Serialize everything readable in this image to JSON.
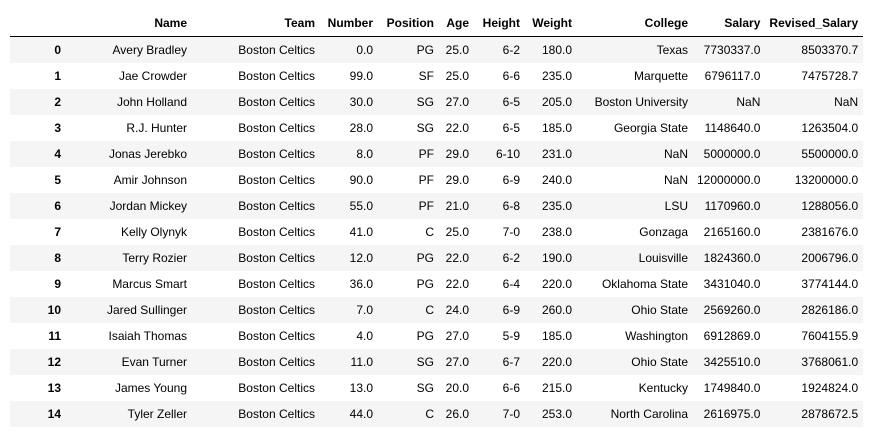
{
  "columns": [
    "",
    "Name",
    "Team",
    "Number",
    "Position",
    "Age",
    "Height",
    "Weight",
    "College",
    "Salary",
    "Revised_Salary"
  ],
  "rows": [
    [
      "0",
      "Avery Bradley",
      "Boston Celtics",
      "0.0",
      "PG",
      "25.0",
      "6-2",
      "180.0",
      "Texas",
      "7730337.0",
      "8503370.7"
    ],
    [
      "1",
      "Jae Crowder",
      "Boston Celtics",
      "99.0",
      "SF",
      "25.0",
      "6-6",
      "235.0",
      "Marquette",
      "6796117.0",
      "7475728.7"
    ],
    [
      "2",
      "John Holland",
      "Boston Celtics",
      "30.0",
      "SG",
      "27.0",
      "6-5",
      "205.0",
      "Boston University",
      "NaN",
      "NaN"
    ],
    [
      "3",
      "R.J. Hunter",
      "Boston Celtics",
      "28.0",
      "SG",
      "22.0",
      "6-5",
      "185.0",
      "Georgia State",
      "1148640.0",
      "1263504.0"
    ],
    [
      "4",
      "Jonas Jerebko",
      "Boston Celtics",
      "8.0",
      "PF",
      "29.0",
      "6-10",
      "231.0",
      "NaN",
      "5000000.0",
      "5500000.0"
    ],
    [
      "5",
      "Amir Johnson",
      "Boston Celtics",
      "90.0",
      "PF",
      "29.0",
      "6-9",
      "240.0",
      "NaN",
      "12000000.0",
      "13200000.0"
    ],
    [
      "6",
      "Jordan Mickey",
      "Boston Celtics",
      "55.0",
      "PF",
      "21.0",
      "6-8",
      "235.0",
      "LSU",
      "1170960.0",
      "1288056.0"
    ],
    [
      "7",
      "Kelly Olynyk",
      "Boston Celtics",
      "41.0",
      "C",
      "25.0",
      "7-0",
      "238.0",
      "Gonzaga",
      "2165160.0",
      "2381676.0"
    ],
    [
      "8",
      "Terry Rozier",
      "Boston Celtics",
      "12.0",
      "PG",
      "22.0",
      "6-2",
      "190.0",
      "Louisville",
      "1824360.0",
      "2006796.0"
    ],
    [
      "9",
      "Marcus Smart",
      "Boston Celtics",
      "36.0",
      "PG",
      "22.0",
      "6-4",
      "220.0",
      "Oklahoma State",
      "3431040.0",
      "3774144.0"
    ],
    [
      "10",
      "Jared Sullinger",
      "Boston Celtics",
      "7.0",
      "C",
      "24.0",
      "6-9",
      "260.0",
      "Ohio State",
      "2569260.0",
      "2826186.0"
    ],
    [
      "11",
      "Isaiah Thomas",
      "Boston Celtics",
      "4.0",
      "PG",
      "27.0",
      "5-9",
      "185.0",
      "Washington",
      "6912869.0",
      "7604155.9"
    ],
    [
      "12",
      "Evan Turner",
      "Boston Celtics",
      "11.0",
      "SG",
      "27.0",
      "6-7",
      "220.0",
      "Ohio State",
      "3425510.0",
      "3768061.0"
    ],
    [
      "13",
      "James Young",
      "Boston Celtics",
      "13.0",
      "SG",
      "20.0",
      "6-6",
      "215.0",
      "Kentucky",
      "1749840.0",
      "1924824.0"
    ],
    [
      "14",
      "Tyler Zeller",
      "Boston Celtics",
      "44.0",
      "C",
      "26.0",
      "7-0",
      "253.0",
      "North Carolina",
      "2616975.0",
      "2878672.5"
    ]
  ]
}
